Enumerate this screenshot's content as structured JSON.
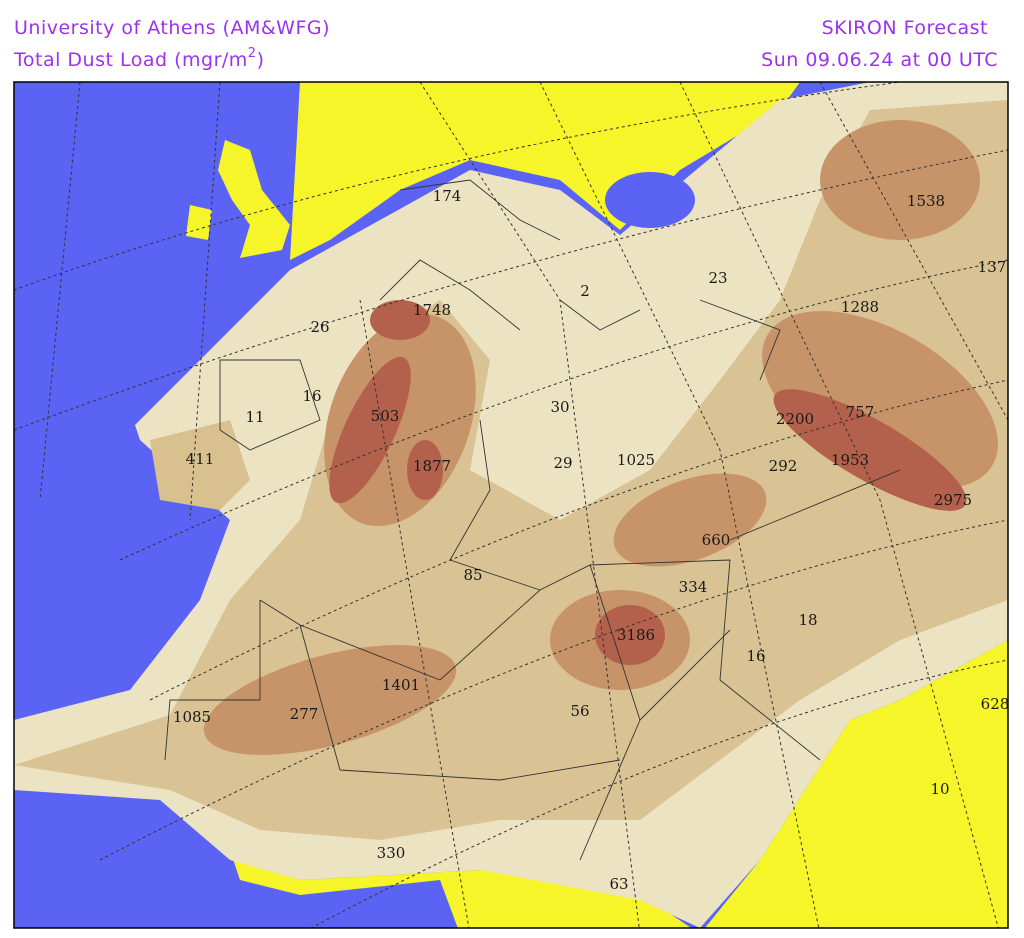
{
  "header": {
    "left_line1": "University of Athens (AM&WFG)",
    "left_line2": "Total Dust Load (mgr/m",
    "left_line2_sup": "2",
    "left_line2_end": ")",
    "right_line1": "SKIRON Forecast",
    "right_line2": "Sun 09.06.24 at 00 UTC"
  },
  "map": {
    "labels": [
      174,
      26,
      1748,
      16,
      11,
      503,
      411,
      1877,
      30,
      29,
      1025,
      23,
      2,
      1538,
      137,
      1288,
      2200,
      757,
      292,
      1953,
      2975,
      660,
      334,
      85,
      18,
      3186,
      16,
      1401,
      1085,
      277,
      56,
      628,
      10,
      330,
      63
    ]
  }
}
